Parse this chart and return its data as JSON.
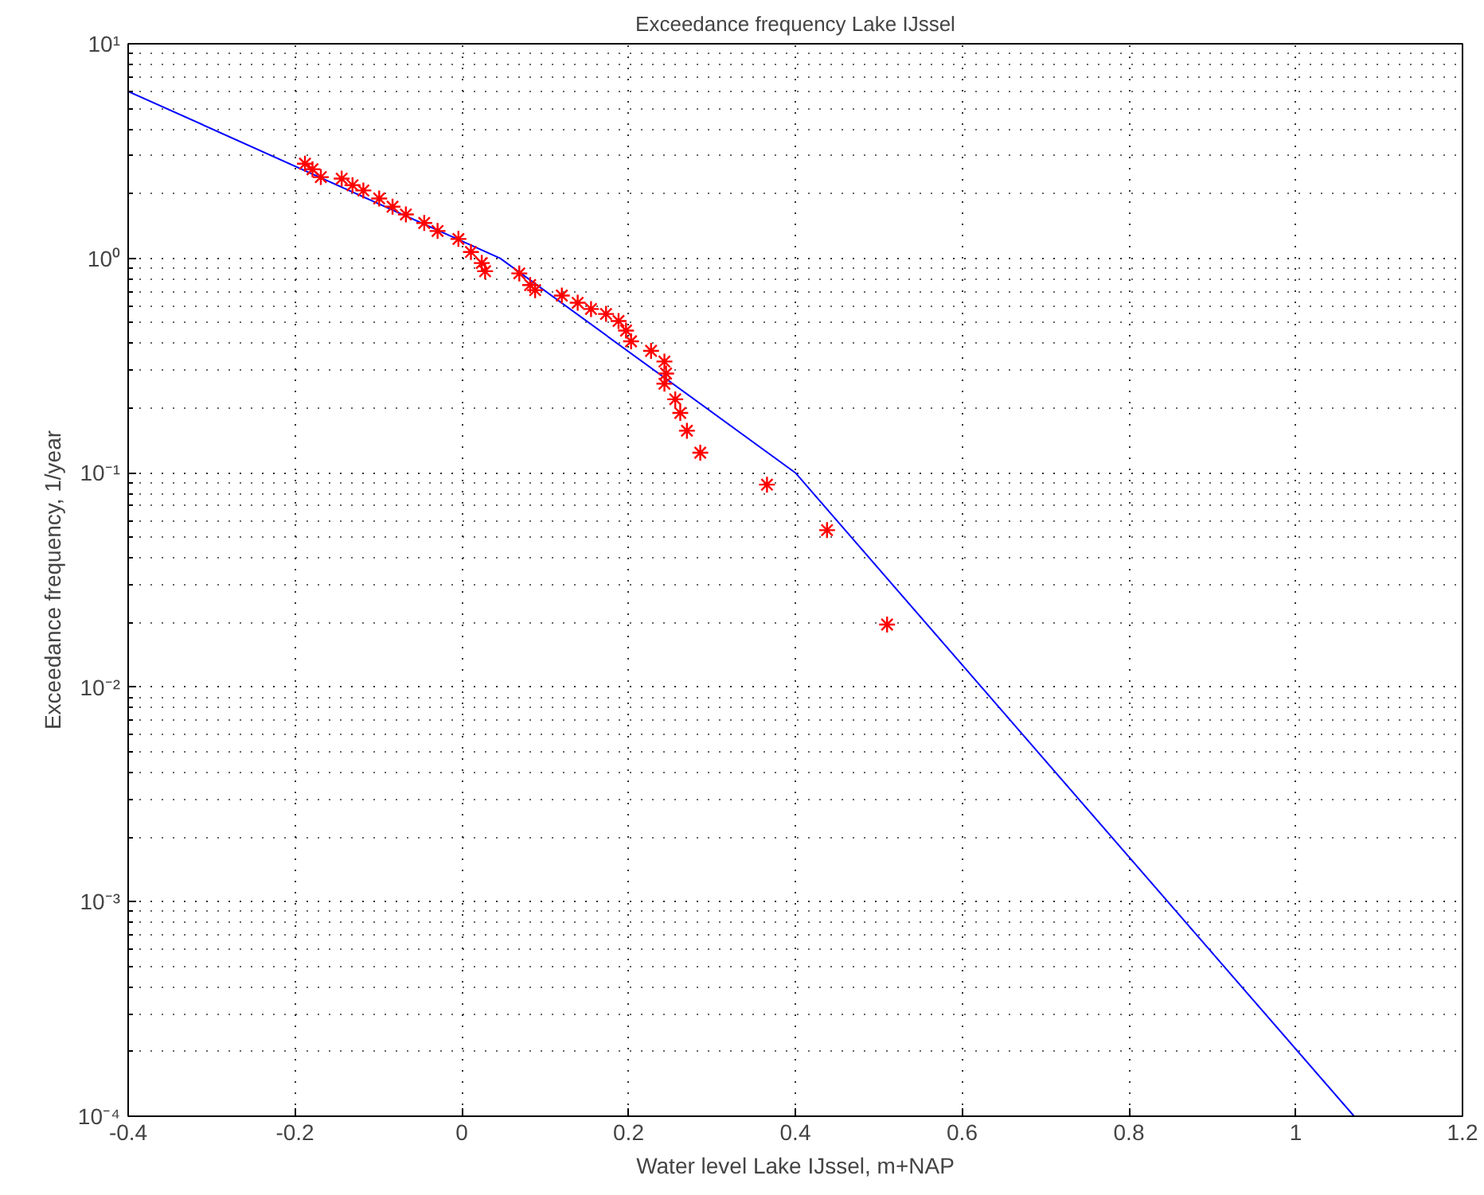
{
  "chart_data": {
    "type": "line",
    "title": "Exceedance frequency Lake IJssel",
    "xlabel": "Water level Lake IJssel, m+NAP",
    "ylabel": "Exceedance frequency, 1/year",
    "log": "y",
    "grid": true,
    "xlim": [
      -0.4,
      1.2
    ],
    "ylim": [
      0.0001,
      10
    ],
    "xticks": [
      -0.4,
      -0.2,
      0,
      0.2,
      0.4,
      0.6,
      0.8,
      1,
      1.2
    ],
    "yticks": [
      {
        "value": 0.0001,
        "label": "10⁻⁴"
      },
      {
        "value": 0.001,
        "label": "10⁻³"
      },
      {
        "value": 0.01,
        "label": "10⁻²"
      },
      {
        "value": 0.1,
        "label": "10⁻¹"
      },
      {
        "value": 1,
        "label": "10⁰"
      },
      {
        "value": 10,
        "label": "10¹"
      }
    ],
    "series": [
      {
        "color": "#0000ff",
        "marker": "none",
        "line_style": "solid",
        "x": [
          -0.4,
          0.046,
          0.4,
          1.07
        ],
        "values": [
          6,
          1.0,
          0.1,
          0.0001
        ]
      },
      {
        "type": "scatter",
        "color": "#ff0000",
        "marker": "cross",
        "x": [
          -0.188,
          -0.179,
          -0.169,
          -0.144,
          -0.131,
          -0.118,
          -0.099,
          -0.083,
          -0.067,
          -0.045,
          -0.029,
          -0.004,
          0.011,
          0.024,
          0.028,
          0.069,
          0.082,
          0.088,
          0.12,
          0.139,
          0.155,
          0.173,
          0.188,
          0.197,
          0.203,
          0.227,
          0.243,
          0.245,
          0.243,
          0.256,
          0.262,
          0.27,
          0.286,
          0.366,
          0.438,
          0.51
        ],
        "values": [
          2.76,
          2.6,
          2.39,
          2.35,
          2.19,
          2.07,
          1.9,
          1.74,
          1.6,
          1.46,
          1.34,
          1.23,
          1.07,
          0.95,
          0.87,
          0.85,
          0.75,
          0.71,
          0.67,
          0.62,
          0.58,
          0.55,
          0.51,
          0.46,
          0.41,
          0.37,
          0.33,
          0.29,
          0.26,
          0.22,
          0.19,
          0.157,
          0.124,
          0.088,
          0.054,
          0.0196
        ]
      }
    ]
  }
}
